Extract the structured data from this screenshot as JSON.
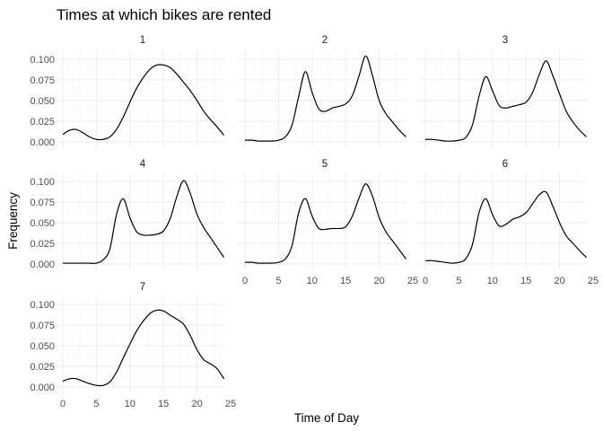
{
  "chart_data": {
    "type": "line",
    "title": "Times at which bikes are rented",
    "xlabel": "Time of Day",
    "ylabel": "Frequency",
    "xlim": [
      0,
      24
    ],
    "ylim": [
      0,
      0.105
    ],
    "x_ticks": [
      0,
      5,
      10,
      15,
      20,
      25
    ],
    "y_ticks": [
      0.0,
      0.025,
      0.05,
      0.075,
      0.1
    ],
    "y_tick_labels": [
      "0.000",
      "0.025",
      "0.050",
      "0.075",
      "0.100"
    ],
    "grid": true,
    "facet_by": "day",
    "x": [
      0,
      1,
      2,
      3,
      4,
      5,
      6,
      7,
      8,
      9,
      10,
      11,
      12,
      13,
      14,
      15,
      16,
      17,
      18,
      19,
      20,
      21,
      22,
      23,
      24
    ],
    "series": [
      {
        "name": "1",
        "values": [
          0.009,
          0.014,
          0.015,
          0.011,
          0.006,
          0.003,
          0.003,
          0.006,
          0.015,
          0.03,
          0.048,
          0.065,
          0.078,
          0.088,
          0.093,
          0.093,
          0.09,
          0.082,
          0.072,
          0.062,
          0.05,
          0.037,
          0.027,
          0.018,
          0.008
        ]
      },
      {
        "name": "2",
        "values": [
          0.002,
          0.002,
          0.001,
          0.001,
          0.001,
          0.002,
          0.006,
          0.02,
          0.055,
          0.085,
          0.06,
          0.04,
          0.037,
          0.041,
          0.043,
          0.046,
          0.056,
          0.08,
          0.104,
          0.08,
          0.05,
          0.034,
          0.024,
          0.014,
          0.006
        ]
      },
      {
        "name": "3",
        "values": [
          0.003,
          0.003,
          0.002,
          0.001,
          0.001,
          0.002,
          0.005,
          0.02,
          0.055,
          0.079,
          0.062,
          0.044,
          0.041,
          0.043,
          0.045,
          0.048,
          0.06,
          0.082,
          0.098,
          0.08,
          0.058,
          0.037,
          0.024,
          0.014,
          0.006
        ]
      },
      {
        "name": "4",
        "values": [
          0.001,
          0.001,
          0.001,
          0.001,
          0.001,
          0.001,
          0.005,
          0.018,
          0.06,
          0.079,
          0.056,
          0.039,
          0.035,
          0.035,
          0.036,
          0.04,
          0.055,
          0.082,
          0.101,
          0.085,
          0.06,
          0.044,
          0.032,
          0.02,
          0.008
        ]
      },
      {
        "name": "5",
        "values": [
          0.002,
          0.002,
          0.001,
          0.001,
          0.001,
          0.002,
          0.006,
          0.022,
          0.062,
          0.079,
          0.058,
          0.043,
          0.042,
          0.043,
          0.043,
          0.045,
          0.058,
          0.08,
          0.097,
          0.082,
          0.056,
          0.039,
          0.028,
          0.017,
          0.006
        ]
      },
      {
        "name": "6",
        "values": [
          0.004,
          0.004,
          0.003,
          0.002,
          0.001,
          0.002,
          0.006,
          0.023,
          0.062,
          0.079,
          0.06,
          0.046,
          0.048,
          0.054,
          0.057,
          0.062,
          0.073,
          0.084,
          0.087,
          0.07,
          0.05,
          0.034,
          0.025,
          0.016,
          0.008
        ]
      },
      {
        "name": "7",
        "values": [
          0.007,
          0.01,
          0.01,
          0.007,
          0.004,
          0.002,
          0.002,
          0.006,
          0.018,
          0.035,
          0.052,
          0.068,
          0.08,
          0.089,
          0.093,
          0.092,
          0.087,
          0.082,
          0.076,
          0.062,
          0.045,
          0.033,
          0.028,
          0.022,
          0.01
        ]
      }
    ]
  }
}
